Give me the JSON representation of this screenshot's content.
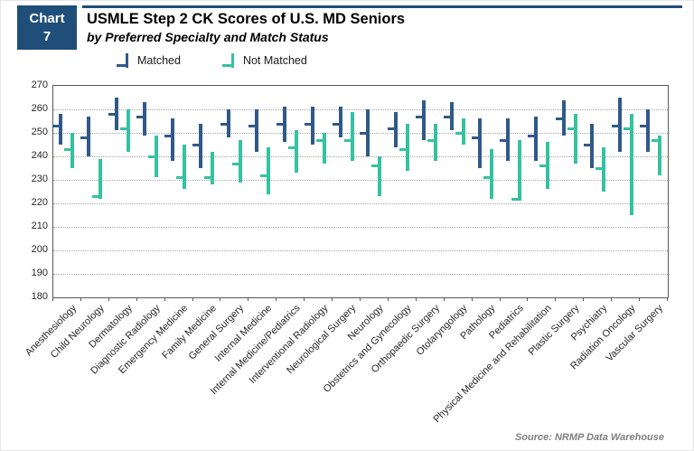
{
  "badge": {
    "line1": "Chart",
    "line2": "7"
  },
  "header": {
    "title": "USMLE Step 2 CK Scores of U.S. MD Seniors",
    "subtitle": "by Preferred Specialty and Match Status"
  },
  "legend": {
    "items": [
      {
        "label": "Matched",
        "color": "#30598a"
      },
      {
        "label": "Not Matched",
        "color": "#35c2a0"
      }
    ]
  },
  "footer": {
    "source": "Source: NRMP Data Warehouse"
  },
  "colors": {
    "badge_bg": "#1f4e79",
    "matched": "#30598a",
    "not_matched": "#35c2a0",
    "grid": "#a6a6a6",
    "plot_border": "#595959"
  },
  "chart_data": {
    "type": "hilo-range",
    "title": "USMLE Step 2 CK Scores of U.S. MD Seniors",
    "subtitle": "by Preferred Specialty and Match Status",
    "ylabel": "",
    "xlabel": "",
    "ylim": [
      180,
      270
    ],
    "ytick_step": 10,
    "yticks": [
      180,
      190,
      200,
      210,
      220,
      230,
      240,
      250,
      260,
      270
    ],
    "grid": "horizontal-dotted",
    "legend_position": "top",
    "marker_note": "vertical line spans low-high; short horizontal tick extends left at mid value",
    "categories": [
      "Anesthesiology",
      "Child Neurology",
      "Dermatology",
      "Diagnostic Radiology",
      "Emergency Medicine",
      "Family Medicine",
      "General Surgery",
      "Internal Medicine",
      "Internal Medicine/Pediatrics",
      "Interventional Radiology",
      "Neurological Surgery",
      "Neurology",
      "Obstetrics and Gynecology",
      "Orthopaedic Surgery",
      "Otolaryngology",
      "Pathology",
      "Pediatrics",
      "Physical Medicine and Rehabilitation",
      "Plastic Surgery",
      "Psychiatry",
      "Radiation Oncology",
      "Vascular Surgery"
    ],
    "series": [
      {
        "name": "Matched",
        "color": "#30598a",
        "points": [
          {
            "low": 245,
            "mid": 253,
            "high": 258
          },
          {
            "low": 240,
            "mid": 248,
            "high": 257
          },
          {
            "low": 251,
            "mid": 258,
            "high": 265
          },
          {
            "low": 249,
            "mid": 257,
            "high": 263
          },
          {
            "low": 238,
            "mid": 249,
            "high": 256
          },
          {
            "low": 235,
            "mid": 245,
            "high": 254
          },
          {
            "low": 248,
            "mid": 254,
            "high": 260
          },
          {
            "low": 242,
            "mid": 253,
            "high": 260
          },
          {
            "low": 246,
            "mid": 254,
            "high": 261
          },
          {
            "low": 245,
            "mid": 254,
            "high": 261
          },
          {
            "low": 248,
            "mid": 254,
            "high": 261
          },
          {
            "low": 240,
            "mid": 250,
            "high": 260
          },
          {
            "low": 244,
            "mid": 252,
            "high": 259
          },
          {
            "low": 247,
            "mid": 257,
            "high": 264
          },
          {
            "low": 251,
            "mid": 257,
            "high": 263
          },
          {
            "low": 235,
            "mid": 248,
            "high": 256
          },
          {
            "low": 238,
            "mid": 247,
            "high": 256
          },
          {
            "low": 238,
            "mid": 249,
            "high": 257
          },
          {
            "low": 249,
            "mid": 256,
            "high": 264
          },
          {
            "low": 235,
            "mid": 245,
            "high": 254
          },
          {
            "low": 242,
            "mid": 253,
            "high": 265
          },
          {
            "low": 242,
            "mid": 253,
            "high": 260
          }
        ]
      },
      {
        "name": "Not Matched",
        "color": "#35c2a0",
        "points": [
          {
            "low": 235,
            "mid": 243,
            "high": 250
          },
          {
            "low": 222,
            "mid": 223,
            "high": 239
          },
          {
            "low": 242,
            "mid": 252,
            "high": 260
          },
          {
            "low": 231,
            "mid": 240,
            "high": 249
          },
          {
            "low": 226,
            "mid": 231,
            "high": 245
          },
          {
            "low": 228,
            "mid": 231,
            "high": 242
          },
          {
            "low": 229,
            "mid": 237,
            "high": 247
          },
          {
            "low": 224,
            "mid": 232,
            "high": 244
          },
          {
            "low": 233,
            "mid": 244,
            "high": 251
          },
          {
            "low": 237,
            "mid": 247,
            "high": 250
          },
          {
            "low": 238,
            "mid": 247,
            "high": 259
          },
          {
            "low": 223,
            "mid": 236,
            "high": 240
          },
          {
            "low": 234,
            "mid": 243,
            "high": 254
          },
          {
            "low": 238,
            "mid": 247,
            "high": 254
          },
          {
            "low": 245,
            "mid": 250,
            "high": 256
          },
          {
            "low": 222,
            "mid": 231,
            "high": 243
          },
          {
            "low": 221,
            "mid": 222,
            "high": 247
          },
          {
            "low": 226,
            "mid": 236,
            "high": 246
          },
          {
            "low": 237,
            "mid": 252,
            "high": 258
          },
          {
            "low": 225,
            "mid": 235,
            "high": 244
          },
          {
            "low": 215,
            "mid": 252,
            "high": 258
          },
          {
            "low": 232,
            "mid": 247,
            "high": 249
          }
        ]
      }
    ],
    "source": "Source: NRMP Data Warehouse"
  }
}
